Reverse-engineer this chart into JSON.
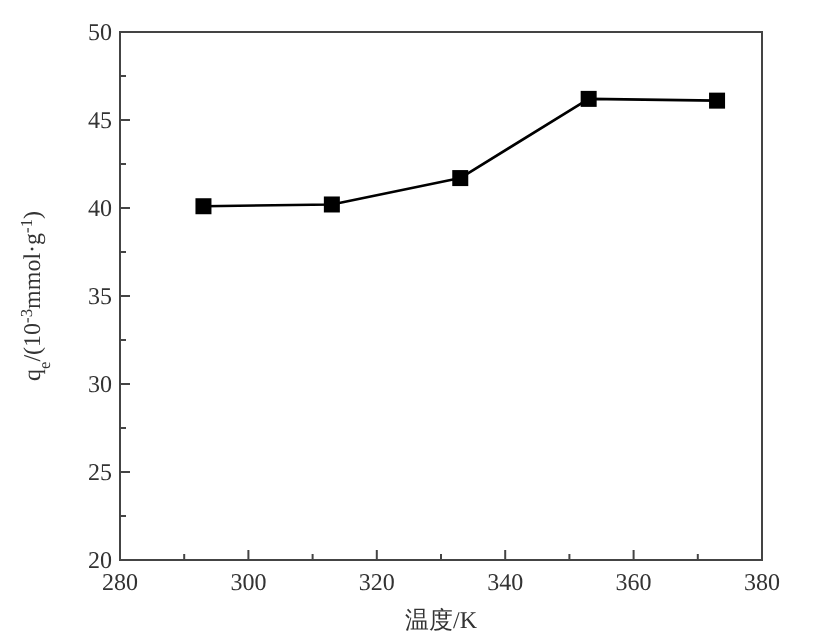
{
  "chart_data": {
    "type": "line",
    "xlabel": "温度/K",
    "ylabel": "q$_{e}$/(10$^{-3}$mmol·g$^{-1}$)",
    "x": [
      293,
      313,
      333,
      353,
      373
    ],
    "series": [
      {
        "color": "#000000",
        "values": [
          40.1,
          40.2,
          41.7,
          46.2,
          46.1
        ]
      }
    ],
    "xlim": [
      280,
      380
    ],
    "ylim": [
      20,
      50
    ],
    "xticks": [
      280,
      {
        "value": 290,
        "label": null
      },
      300,
      {
        "value": 310,
        "label": null
      },
      320,
      {
        "value": 330,
        "label": null
      },
      340,
      {
        "value": 350,
        "label": null
      },
      360,
      {
        "value": 370,
        "label": null
      },
      380
    ],
    "yticks": [
      20,
      {
        "value": 22.5,
        "label": null
      },
      25,
      {
        "value": 27.5,
        "label": null
      },
      30,
      {
        "value": 32.5,
        "label": null
      },
      35,
      {
        "value": 37.5,
        "label": null
      },
      40,
      {
        "value": 42.5,
        "label": null
      },
      45,
      {
        "value": 47.5,
        "label": null
      },
      50
    ],
    "marker": "square",
    "line_style": "solid",
    "grid": false
  }
}
